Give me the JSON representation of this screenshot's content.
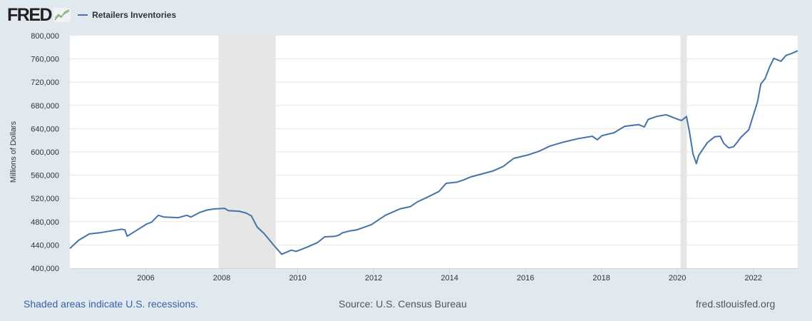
{
  "header": {
    "logo": "FRED",
    "logo_icon": "chart-line-icon",
    "legend": [
      {
        "label": "Retailers Inventories",
        "color": "#4572a7"
      }
    ]
  },
  "footer": {
    "recession_note": "Shaded areas indicate U.S. recessions.",
    "source": "Source: U.S. Census Bureau",
    "site": "fred.stlouisfed.org"
  },
  "chart_data": {
    "type": "line",
    "title": "",
    "xlabel": "",
    "ylabel": "Millions of Dollars",
    "ylim": [
      400000,
      800000
    ],
    "xlim": [
      2004.0,
      2023.17
    ],
    "grid": true,
    "legend_position": "top-left",
    "y_ticks": [
      400000,
      440000,
      480000,
      520000,
      560000,
      600000,
      640000,
      680000,
      720000,
      760000,
      800000
    ],
    "y_tick_labels": [
      "400,000",
      "440,000",
      "480,000",
      "520,000",
      "560,000",
      "600,000",
      "640,000",
      "680,000",
      "720,000",
      "760,000",
      "800,000"
    ],
    "x_ticks": [
      2006,
      2008,
      2010,
      2012,
      2014,
      2016,
      2018,
      2020,
      2022
    ],
    "x_tick_labels": [
      "2006",
      "2008",
      "2010",
      "2012",
      "2014",
      "2016",
      "2018",
      "2020",
      "2022"
    ],
    "recessions": [
      [
        2007.92,
        2009.42
      ],
      [
        2020.08,
        2020.25
      ]
    ],
    "series": [
      {
        "name": "Retailers Inventories",
        "color": "#4572a7",
        "x": [
          2004.0,
          2004.23,
          2004.51,
          2004.79,
          2005.07,
          2005.36,
          2005.45,
          2005.51,
          2005.73,
          2006.02,
          2006.15,
          2006.33,
          2006.48,
          2006.86,
          2007.08,
          2007.19,
          2007.42,
          2007.61,
          2007.8,
          2008.08,
          2008.17,
          2008.46,
          2008.64,
          2008.78,
          2008.93,
          2009.11,
          2009.39,
          2009.58,
          2009.83,
          2009.96,
          2010.24,
          2010.52,
          2010.71,
          2010.99,
          2011.09,
          2011.18,
          2011.37,
          2011.56,
          2011.94,
          2012.31,
          2012.69,
          2012.97,
          2013.15,
          2013.44,
          2013.72,
          2013.91,
          2014.19,
          2014.38,
          2014.56,
          2014.84,
          2015.13,
          2015.41,
          2015.69,
          2016.07,
          2016.35,
          2016.64,
          2017.01,
          2017.39,
          2017.76,
          2017.89,
          2018.01,
          2018.33,
          2018.61,
          2018.98,
          2019.13,
          2019.23,
          2019.45,
          2019.7,
          2020.02,
          2020.11,
          2020.24,
          2020.32,
          2020.41,
          2020.5,
          2020.56,
          2020.79,
          2020.98,
          2021.13,
          2021.22,
          2021.35,
          2021.48,
          2021.58,
          2021.67,
          2021.88,
          2022.01,
          2022.11,
          2022.2,
          2022.31,
          2022.42,
          2022.54,
          2022.73,
          2022.86,
          2022.99,
          2023.17
        ],
        "values": [
          434000,
          448000,
          459000,
          461000,
          464000,
          467000,
          466000,
          455000,
          464000,
          476000,
          479000,
          491000,
          488000,
          487000,
          491000,
          488000,
          496000,
          500000,
          502000,
          503000,
          499000,
          498000,
          495000,
          490000,
          471000,
          460000,
          438000,
          424000,
          431000,
          429000,
          436000,
          444000,
          454000,
          455000,
          457000,
          461000,
          464000,
          466000,
          475000,
          491000,
          502000,
          506000,
          514000,
          523000,
          532000,
          546000,
          548000,
          552000,
          557000,
          562000,
          567000,
          575000,
          589000,
          595000,
          601000,
          610000,
          617000,
          623000,
          627000,
          621000,
          628000,
          633000,
          644000,
          647000,
          643000,
          656000,
          661000,
          664000,
          656000,
          654000,
          661000,
          634000,
          597000,
          580000,
          594000,
          616000,
          626000,
          627000,
          615000,
          607000,
          609000,
          617000,
          625000,
          638000,
          665000,
          686000,
          717000,
          726000,
          745000,
          761000,
          756000,
          766000,
          769000,
          774000
        ]
      }
    ]
  }
}
